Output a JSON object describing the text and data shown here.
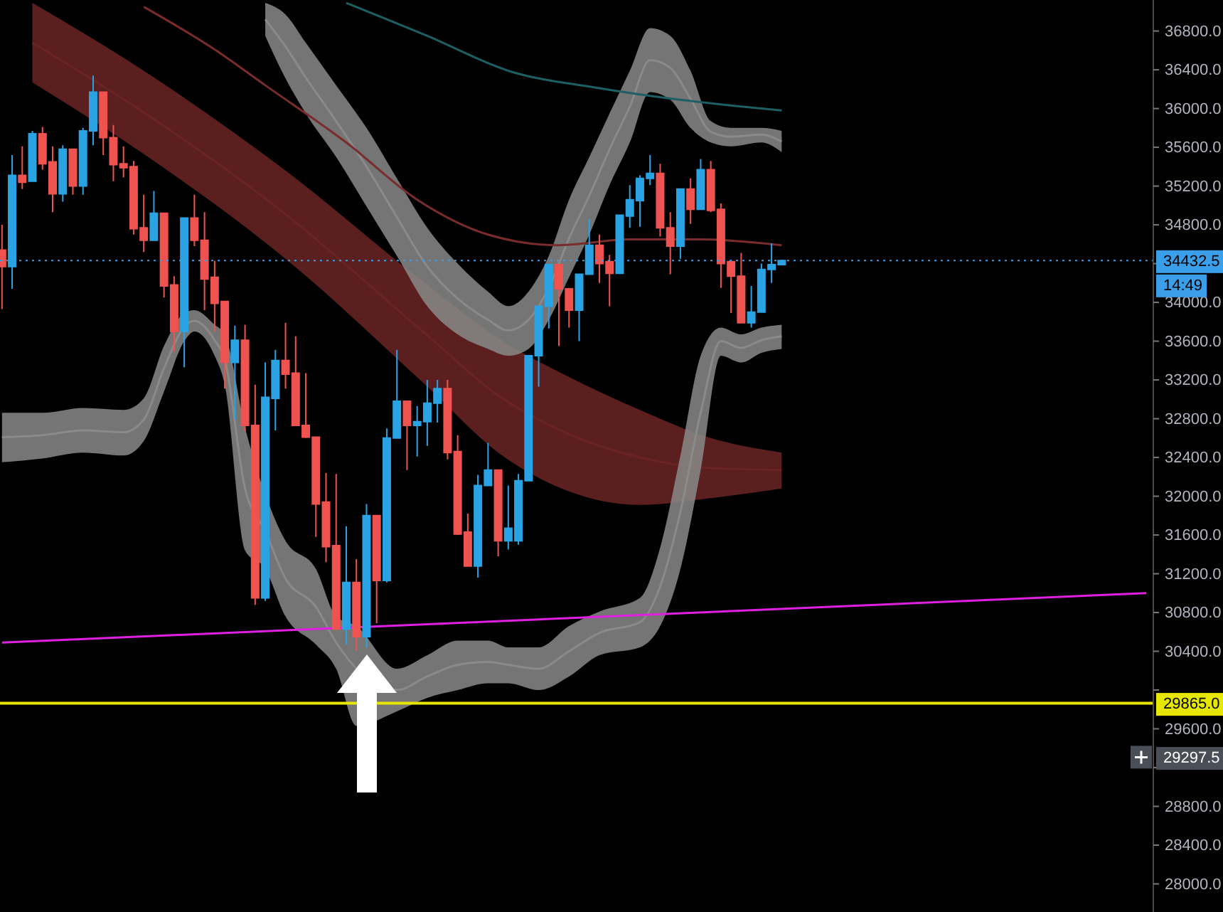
{
  "chart_data": {
    "type": "candlestick",
    "categories": [
      null,
      null,
      null,
      null,
      null,
      null,
      null,
      null,
      null,
      null,
      null,
      null,
      null,
      null,
      null,
      null,
      null,
      null,
      null,
      null,
      null,
      null,
      null,
      null,
      null,
      null,
      null,
      null,
      null,
      null,
      null,
      null,
      null,
      null,
      null,
      null,
      null,
      null,
      null,
      null,
      null,
      null,
      null,
      null,
      null,
      null,
      null,
      null,
      null,
      null,
      null,
      null,
      null,
      null,
      null,
      null,
      null,
      null,
      null,
      null,
      null,
      null,
      null,
      null,
      null,
      null,
      null,
      null,
      null,
      null,
      null,
      null,
      null,
      null,
      null,
      null,
      null,
      null,
      null,
      null,
      null,
      null,
      null,
      null,
      null,
      null,
      null,
      null,
      null,
      null,
      null,
      null,
      null,
      null,
      null,
      null,
      null,
      null,
      null,
      null,
      null,
      null,
      null,
      null,
      null,
      null,
      null,
      null,
      null,
      null,
      null,
      null,
      null,
      null
    ],
    "ohlc": [
      [
        34540,
        34800,
        33930,
        34370
      ],
      [
        34370,
        35520,
        34140,
        35310
      ],
      [
        35310,
        35610,
        35170,
        35240
      ],
      [
        35250,
        35770,
        35250,
        35740
      ],
      [
        35740,
        35810,
        35370,
        35430
      ],
      [
        35450,
        35610,
        34930,
        35120
      ],
      [
        35120,
        35620,
        35040,
        35580
      ],
      [
        35580,
        35580,
        35110,
        35200
      ],
      [
        35200,
        35800,
        35110,
        35770
      ],
      [
        35770,
        36340,
        35620,
        36170
      ],
      [
        36170,
        36170,
        35520,
        35700
      ],
      [
        35700,
        35830,
        35250,
        35420
      ],
      [
        35430,
        35610,
        35290,
        35390
      ],
      [
        35400,
        35460,
        34700,
        34760
      ],
      [
        34770,
        35110,
        34520,
        34640
      ],
      [
        34640,
        35150,
        34640,
        34920
      ],
      [
        34920,
        34920,
        34050,
        34170
      ],
      [
        34180,
        34270,
        33490,
        33700
      ],
      [
        33700,
        34870,
        33330,
        34870
      ],
      [
        34870,
        35110,
        34580,
        34640
      ],
      [
        34640,
        34930,
        33920,
        34240
      ],
      [
        34260,
        34430,
        33700,
        33990
      ],
      [
        34010,
        34010,
        33110,
        33380
      ],
      [
        33380,
        33760,
        32790,
        33610
      ],
      [
        33610,
        33770,
        32670,
        32730
      ],
      [
        32730,
        33150,
        30880,
        30950
      ],
      [
        30950,
        33380,
        30920,
        33020
      ],
      [
        33010,
        33510,
        32680,
        33400
      ],
      [
        33400,
        33790,
        33110,
        33260
      ],
      [
        33270,
        33650,
        32730,
        32730
      ],
      [
        32730,
        33270,
        32600,
        32610
      ],
      [
        32610,
        32610,
        31580,
        31920
      ],
      [
        31940,
        32240,
        31320,
        31480
      ],
      [
        31490,
        32230,
        30630,
        30630
      ],
      [
        30630,
        31690,
        30470,
        31110
      ],
      [
        31110,
        31350,
        30410,
        30550
      ],
      [
        30550,
        31920,
        30440,
        31800
      ],
      [
        31800,
        31800,
        30690,
        31130
      ],
      [
        31130,
        32700,
        31110,
        32600
      ],
      [
        32600,
        33510,
        32600,
        32980
      ],
      [
        32980,
        32980,
        32270,
        32730
      ],
      [
        32730,
        32930,
        32410,
        32770
      ],
      [
        32770,
        33200,
        32520,
        32960
      ],
      [
        32960,
        33200,
        32760,
        33110
      ],
      [
        33110,
        33200,
        32380,
        32450
      ],
      [
        32460,
        32630,
        31600,
        31610
      ],
      [
        31630,
        31820,
        31280,
        31280
      ],
      [
        31280,
        32220,
        31160,
        32110
      ],
      [
        32110,
        32550,
        32110,
        32270
      ],
      [
        32270,
        32270,
        31380,
        31540
      ],
      [
        31540,
        32110,
        31450,
        31670
      ],
      [
        31540,
        32230,
        31500,
        32160
      ],
      [
        32160,
        33450,
        32160,
        33450
      ],
      [
        33450,
        33960,
        33130,
        33960
      ],
      [
        33960,
        34400,
        33730,
        34390
      ],
      [
        34390,
        34390,
        33550,
        34140
      ],
      [
        34140,
        34150,
        33740,
        33920
      ],
      [
        33920,
        34290,
        33600,
        34290
      ],
      [
        34290,
        34860,
        34290,
        34590
      ],
      [
        34590,
        34700,
        34200,
        34400
      ],
      [
        34420,
        34490,
        33960,
        34300
      ],
      [
        34300,
        34900,
        34300,
        34900
      ],
      [
        34890,
        35210,
        34770,
        35060
      ],
      [
        35050,
        35310,
        34780,
        35280
      ],
      [
        35280,
        35520,
        35210,
        35330
      ],
      [
        35330,
        35430,
        34680,
        34770
      ],
      [
        34770,
        34930,
        34290,
        34580
      ],
      [
        34580,
        35170,
        34450,
        35170
      ],
      [
        35170,
        35280,
        34810,
        34960
      ],
      [
        34960,
        35480,
        34960,
        35370
      ],
      [
        35370,
        35460,
        34930,
        34950
      ],
      [
        34960,
        35020,
        34150,
        34400
      ],
      [
        34420,
        34420,
        33890,
        34270
      ],
      [
        34270,
        34510,
        33790,
        33790
      ],
      [
        33790,
        34170,
        33740,
        33900
      ],
      [
        33900,
        34400,
        33900,
        34340
      ],
      [
        34340,
        34610,
        34200,
        34390
      ],
      [
        34390,
        34432.5,
        34390,
        34432.5
      ],
      null,
      null,
      null,
      null,
      null,
      null,
      null,
      null,
      null,
      null,
      null,
      null,
      null,
      null,
      null,
      null,
      null,
      null,
      null,
      null,
      null,
      null,
      null,
      null,
      null,
      null,
      null,
      null,
      null,
      null,
      null,
      null,
      null,
      null,
      null,
      null
    ],
    "colors": [
      "#ef5350",
      "#2aa3e4",
      "#ef5350",
      "#2aa3e4",
      "#ef5350",
      "#ef5350",
      "#2aa3e4",
      "#ef5350",
      "#2aa3e4",
      "#2aa3e4",
      "#ef5350",
      "#ef5350",
      "#ef5350",
      "#ef5350",
      "#ef5350",
      "#2aa3e4",
      "#ef5350",
      "#ef5350",
      "#2aa3e4",
      "#ef5350",
      "#ef5350",
      "#ef5350",
      "#ef5350",
      "#2aa3e4",
      "#ef5350",
      "#ef5350",
      "#2aa3e4",
      "#2aa3e4",
      "#ef5350",
      "#ef5350",
      "#ef5350",
      "#ef5350",
      "#ef5350",
      "#ef5350",
      "#2aa3e4",
      "#ef5350",
      "#2aa3e4",
      "#ef5350",
      "#2aa3e4",
      "#2aa3e4",
      "#ef5350",
      "#2aa3e4",
      "#2aa3e4",
      "#2aa3e4",
      "#ef5350",
      "#ef5350",
      "#ef5350",
      "#2aa3e4",
      "#2aa3e4",
      "#ef5350",
      "#2aa3e4",
      "#2aa3e4",
      "#2aa3e4",
      "#2aa3e4",
      "#2aa3e4",
      "#ef5350",
      "#ef5350",
      "#2aa3e4",
      "#2aa3e4",
      "#ef5350",
      "#ef5350",
      "#2aa3e4",
      "#2aa3e4",
      "#2aa3e4",
      "#2aa3e4",
      "#ef5350",
      "#ef5350",
      "#2aa3e4",
      "#ef5350",
      "#2aa3e4",
      "#ef5350",
      "#ef5350",
      "#ef5350",
      "#ef5350",
      "#2aa3e4",
      "#2aa3e4",
      "#2aa3e4",
      "#2aa3e4",
      null,
      null,
      null,
      null,
      null,
      null,
      null,
      null,
      null,
      null,
      null,
      null,
      null,
      null,
      null,
      null,
      null,
      null,
      null,
      null,
      null,
      null,
      null,
      null,
      null,
      null,
      null,
      null,
      null,
      null,
      null,
      null,
      null,
      null,
      null,
      null
    ],
    "series": [
      {
        "type": "line",
        "color": "#6b2424",
        "values": [
          null,
          null,
          null,
          36680,
          null,
          null,
          null,
          null,
          null,
          null,
          null,
          null,
          null,
          null,
          35960,
          null,
          null,
          null,
          null,
          null,
          null,
          null,
          null,
          null,
          null,
          null,
          null,
          null,
          34910,
          null,
          null,
          null,
          null,
          null,
          null,
          null,
          null,
          null,
          null,
          null,
          null,
          null,
          33660,
          null,
          null,
          null,
          null,
          null,
          null,
          33040,
          null,
          null,
          null,
          null,
          null,
          null,
          32640,
          null,
          null,
          null,
          null,
          null,
          null,
          32400,
          null,
          null,
          null,
          null,
          null,
          null,
          32290,
          null,
          null,
          null,
          null,
          null,
          null,
          32270,
          null,
          null,
          null,
          null,
          null,
          null,
          null,
          null,
          null,
          null,
          null,
          null,
          null,
          null,
          null,
          null,
          null,
          null,
          null,
          null,
          null,
          null,
          null,
          null,
          null,
          null,
          null,
          null,
          null,
          null,
          null,
          null,
          null,
          null,
          null,
          null
        ],
        "upper": [
          null,
          null,
          null,
          37090,
          null,
          null,
          null,
          null,
          null,
          null,
          null,
          null,
          null,
          null,
          36390,
          null,
          null,
          null,
          null,
          null,
          null,
          null,
          null,
          null,
          null,
          null,
          null,
          null,
          35360,
          null,
          null,
          null,
          null,
          null,
          null,
          null,
          null,
          null,
          null,
          null,
          null,
          null,
          34180,
          null,
          null,
          null,
          null,
          null,
          null,
          33630,
          null,
          null,
          null,
          null,
          null,
          null,
          33230,
          null,
          null,
          null,
          null,
          null,
          null,
          32890,
          null,
          null,
          null,
          null,
          null,
          null,
          32600,
          null,
          null,
          null,
          null,
          null,
          null,
          32450,
          null,
          null,
          null,
          null,
          null,
          null,
          null,
          null,
          null,
          null,
          null,
          null,
          null,
          null,
          null,
          null,
          null,
          null,
          null,
          null,
          null,
          null,
          null,
          null,
          null,
          null,
          null,
          null,
          null,
          null,
          null,
          null,
          null,
          null,
          null,
          null
        ],
        "lower": [
          null,
          null,
          null,
          36270,
          null,
          null,
          null,
          null,
          null,
          null,
          null,
          null,
          null,
          null,
          35530,
          null,
          null,
          null,
          null,
          null,
          null,
          null,
          null,
          null,
          null,
          null,
          null,
          null,
          34450,
          null,
          null,
          null,
          null,
          null,
          null,
          null,
          null,
          null,
          null,
          null,
          null,
          null,
          33130,
          null,
          null,
          null,
          null,
          null,
          null,
          32450,
          null,
          null,
          null,
          null,
          null,
          null,
          32050,
          null,
          null,
          null,
          null,
          null,
          null,
          31910,
          null,
          null,
          null,
          null,
          null,
          null,
          31980,
          null,
          null,
          null,
          null,
          null,
          null,
          32080,
          null,
          null,
          null,
          null,
          null,
          null,
          null,
          null,
          null,
          null,
          null,
          null,
          null,
          null,
          null,
          null,
          null,
          null,
          null,
          null,
          null,
          null,
          null,
          null,
          null,
          null,
          null,
          null,
          null,
          null,
          null,
          null,
          null,
          null,
          null,
          null
        ]
      },
      {
        "type": "line",
        "color": "#8a8a8a",
        "values": [
          null,
          null,
          null,
          null,
          null,
          null,
          null,
          null,
          null,
          null,
          null,
          null,
          null,
          null,
          null,
          null,
          null,
          null,
          null,
          null,
          null,
          null,
          null,
          null,
          null,
          null,
          36920,
          null,
          36640,
          null,
          36320,
          null,
          null,
          35870,
          null,
          null,
          35400,
          null,
          null,
          34880,
          null,
          null,
          34370,
          null,
          null,
          34040,
          null,
          null,
          33820,
          null,
          33710,
          null,
          33820,
          null,
          34150,
          null,
          34660,
          null,
          35100,
          null,
          35580,
          null,
          36020,
          null,
          36500,
          null,
          36420,
          null,
          36100,
          null,
          35760,
          null,
          35710,
          null,
          null,
          35730,
          null,
          35660,
          null,
          null,
          null,
          null,
          null,
          null,
          null,
          null,
          null,
          null,
          null,
          null,
          null,
          null,
          null,
          null,
          null,
          null,
          null,
          null,
          null,
          null,
          null,
          null,
          null,
          null,
          null,
          null,
          null,
          null,
          null,
          null,
          null,
          null,
          null,
          null
        ],
        "upper": [
          null,
          null,
          null,
          null,
          null,
          null,
          null,
          null,
          null,
          null,
          null,
          null,
          null,
          null,
          null,
          null,
          null,
          null,
          null,
          null,
          null,
          null,
          null,
          null,
          null,
          null,
          37090,
          null,
          36970,
          null,
          36680,
          null,
          null,
          36240,
          null,
          null,
          35800,
          null,
          null,
          35280,
          null,
          null,
          34770,
          null,
          null,
          34400,
          null,
          null,
          34110,
          null,
          33960,
          null,
          34110,
          null,
          34480,
          null,
          35060,
          null,
          35500,
          null,
          35950,
          null,
          36390,
          null,
          36830,
          null,
          36750,
          null,
          36390,
          null,
          35870,
          null,
          35800,
          null,
          null,
          35800,
          null,
          35770,
          null,
          null,
          null,
          null,
          null,
          null,
          null,
          null,
          null,
          null,
          null,
          null,
          null,
          null,
          null,
          null,
          null,
          null,
          null,
          null,
          null,
          null,
          null,
          null,
          null,
          null,
          null,
          null,
          null,
          null,
          null,
          null,
          null,
          null,
          null,
          null
        ],
        "lower": [
          null,
          null,
          null,
          null,
          null,
          null,
          null,
          null,
          null,
          null,
          null,
          null,
          null,
          null,
          null,
          null,
          null,
          null,
          null,
          null,
          null,
          null,
          null,
          null,
          null,
          null,
          36750,
          null,
          36310,
          null,
          35950,
          null,
          null,
          35500,
          null,
          null,
          34990,
          null,
          null,
          34480,
          null,
          null,
          33960,
          null,
          null,
          33670,
          null,
          null,
          33520,
          null,
          33450,
          null,
          33520,
          null,
          33820,
          null,
          34260,
          null,
          34700,
          null,
          35210,
          null,
          35650,
          null,
          36170,
          null,
          36090,
          null,
          35800,
          null,
          35650,
          null,
          35610,
          null,
          null,
          35650,
          null,
          35550,
          null,
          null,
          null,
          null,
          null,
          null,
          null,
          null,
          null,
          null,
          null,
          null,
          null,
          null,
          null,
          null,
          null,
          null,
          null,
          null,
          null,
          null,
          null,
          null,
          null,
          null,
          null,
          null,
          null,
          null,
          null,
          null,
          null,
          null,
          null,
          null
        ]
      },
      {
        "type": "line",
        "color": "#8a8a8a",
        "values": [
          32610,
          null,
          null,
          null,
          32630,
          null,
          null,
          null,
          32680,
          null,
          null,
          null,
          32660,
          null,
          32790,
          null,
          33320,
          null,
          33750,
          33810,
          null,
          33610,
          33410,
          null,
          32080,
          null,
          31640,
          null,
          31150,
          null,
          null,
          30860,
          null,
          30490,
          null,
          null,
          null,
          null,
          null,
          30000,
          null,
          null,
          30140,
          null,
          null,
          30260,
          null,
          null,
          30290,
          null,
          30260,
          null,
          null,
          30220,
          null,
          null,
          30400,
          null,
          null,
          30590,
          null,
          null,
          null,
          30700,
          null,
          31070,
          null,
          31840,
          null,
          32860,
          null,
          33600,
          null,
          33530,
          null,
          33610,
          null,
          33650,
          null,
          null,
          null,
          null,
          null,
          null,
          null,
          null,
          null,
          null,
          null,
          null,
          null,
          null,
          null,
          null,
          null,
          null,
          null,
          null,
          null,
          null,
          null,
          null,
          null,
          null,
          null,
          null,
          null,
          null,
          null,
          null,
          null,
          null,
          null,
          null
        ],
        "upper": [
          32860,
          null,
          null,
          null,
          32860,
          null,
          null,
          null,
          32910,
          null,
          null,
          null,
          32890,
          null,
          33010,
          null,
          33550,
          null,
          33890,
          33920,
          null,
          33770,
          33670,
          null,
          32710,
          null,
          32020,
          null,
          31540,
          null,
          null,
          31250,
          null,
          30760,
          null,
          30660,
          null,
          null,
          null,
          30220,
          null,
          null,
          30360,
          null,
          null,
          30510,
          null,
          null,
          30510,
          null,
          30440,
          null,
          null,
          30440,
          null,
          null,
          30660,
          null,
          null,
          30810,
          null,
          null,
          null,
          30950,
          null,
          31470,
          null,
          32420,
          null,
          33450,
          null,
          33740,
          null,
          33670,
          null,
          33740,
          null,
          33770,
          null,
          null,
          null,
          null,
          null,
          null,
          null,
          null,
          null,
          null,
          null,
          null,
          null,
          null,
          null,
          null,
          null,
          null,
          null,
          null,
          null,
          null,
          null,
          null,
          null,
          null,
          null,
          null,
          null,
          null,
          null,
          null,
          null,
          null,
          null,
          null
        ],
        "lower": [
          32350,
          null,
          null,
          null,
          32390,
          null,
          null,
          null,
          32450,
          null,
          null,
          null,
          32420,
          null,
          32570,
          null,
          33080,
          null,
          33600,
          33700,
          null,
          33450,
          33150,
          null,
          31440,
          null,
          31250,
          null,
          30760,
          null,
          null,
          30470,
          null,
          30220,
          null,
          29630,
          null,
          null,
          null,
          29780,
          null,
          null,
          29920,
          null,
          null,
          30000,
          null,
          null,
          30070,
          null,
          30070,
          null,
          null,
          30000,
          null,
          null,
          30140,
          null,
          null,
          30360,
          null,
          null,
          null,
          30440,
          null,
          30660,
          null,
          31250,
          null,
          32270,
          null,
          33450,
          null,
          33380,
          null,
          33480,
          null,
          33520,
          null,
          null,
          null,
          null,
          null,
          null,
          null,
          null,
          null,
          null,
          null,
          null,
          null,
          null,
          null,
          null,
          null,
          null,
          null,
          null,
          null,
          null,
          null,
          null,
          null,
          null,
          null,
          null,
          null,
          null,
          null,
          null,
          null,
          null,
          null,
          null
        ]
      },
      {
        "type": "line",
        "color": "#7a2c2c",
        "values": [
          null,
          null,
          null,
          null,
          null,
          null,
          null,
          null,
          null,
          null,
          null,
          null,
          null,
          null,
          37050,
          null,
          null,
          null,
          null,
          null,
          null,
          36610,
          null,
          null,
          null,
          null,
          36240,
          null,
          null,
          null,
          null,
          null,
          null,
          null,
          35650,
          null,
          null,
          null,
          null,
          null,
          null,
          35060,
          null,
          null,
          null,
          null,
          null,
          null,
          34700,
          null,
          null,
          null,
          null,
          null,
          null,
          34590,
          null,
          null,
          null,
          null,
          null,
          null,
          34650,
          null,
          null,
          null,
          null,
          null,
          null,
          34650,
          null,
          null,
          null,
          null,
          null,
          null,
          null,
          34590,
          null,
          null,
          null,
          null,
          null,
          null,
          null,
          null,
          null,
          null,
          null,
          null,
          null,
          null,
          null,
          null,
          null,
          null,
          null,
          null,
          null,
          null,
          null,
          null,
          null,
          null,
          null,
          null,
          null,
          null,
          null,
          null,
          null,
          null,
          null,
          null
        ]
      },
      {
        "type": "line",
        "color": "#1d5f62",
        "values": [
          null,
          null,
          null,
          null,
          null,
          null,
          null,
          null,
          null,
          null,
          null,
          null,
          null,
          null,
          null,
          null,
          null,
          null,
          null,
          null,
          null,
          null,
          null,
          null,
          null,
          null,
          null,
          null,
          null,
          null,
          null,
          null,
          null,
          null,
          37090,
          null,
          null,
          null,
          null,
          null,
          null,
          null,
          36750,
          null,
          null,
          null,
          null,
          null,
          null,
          null,
          36390,
          null,
          null,
          null,
          null,
          null,
          null,
          null,
          null,
          36210,
          null,
          null,
          null,
          null,
          null,
          null,
          null,
          36090,
          null,
          null,
          null,
          null,
          null,
          null,
          null,
          null,
          null,
          35980,
          null,
          null,
          null,
          null,
          null,
          null,
          null,
          null,
          null,
          null,
          null,
          null,
          null,
          null,
          null,
          null,
          null,
          null,
          null,
          null,
          null,
          null,
          null,
          null,
          null,
          null,
          null,
          null,
          null,
          null,
          null,
          null,
          null,
          null,
          null,
          null
        ]
      },
      {
        "type": "line",
        "color": "#e020e0",
        "values": [
          30490,
          null,
          null,
          null,
          null,
          null,
          null,
          null,
          null,
          null,
          null,
          null,
          null,
          null,
          null,
          null,
          null,
          null,
          null,
          null,
          null,
          null,
          null,
          null,
          null,
          null,
          null,
          null,
          null,
          null,
          null,
          null,
          null,
          null,
          null,
          null,
          null,
          null,
          null,
          null,
          null,
          null,
          null,
          null,
          null,
          null,
          null,
          null,
          null,
          null,
          null,
          null,
          null,
          null,
          null,
          null,
          null,
          null,
          null,
          null,
          null,
          null,
          null,
          null,
          null,
          null,
          null,
          null,
          null,
          null,
          null,
          null,
          null,
          null,
          null,
          null,
          null,
          null,
          null,
          null,
          null,
          null,
          null,
          null,
          null,
          null,
          null,
          null,
          null,
          null,
          null,
          null,
          null,
          null,
          null,
          null,
          null,
          null,
          null,
          null,
          null,
          null,
          null,
          null,
          null,
          null,
          null,
          null,
          null,
          null,
          null,
          null,
          null,
          31000
        ]
      }
    ],
    "ylim": [
      27710,
      37120
    ],
    "yticks": [
      {
        "value": 28000,
        "label": "28000.0"
      },
      {
        "value": 28400,
        "label": "28400.0"
      },
      {
        "value": 28800,
        "label": "28800.0"
      },
      {
        "value": 29200,
        "label": null
      },
      {
        "value": 29600,
        "label": "29600.0"
      },
      {
        "value": 30000,
        "label": null
      },
      {
        "value": 30400,
        "label": "30400.0"
      },
      {
        "value": 30800,
        "label": "30800.0"
      },
      {
        "value": 31200,
        "label": "31200.0"
      },
      {
        "value": 31600,
        "label": "31600.0"
      },
      {
        "value": 32000,
        "label": "32000.0"
      },
      {
        "value": 32400,
        "label": "32400.0"
      },
      {
        "value": 32800,
        "label": "32800.0"
      },
      {
        "value": 33200,
        "label": "33200.0"
      },
      {
        "value": 33600,
        "label": "33600.0"
      },
      {
        "value": 34000,
        "label": "34000.0"
      },
      {
        "value": 34400,
        "label": null
      },
      {
        "value": 34800,
        "label": "34800.0"
      },
      {
        "value": 35200,
        "label": "35200.0"
      },
      {
        "value": 35600,
        "label": "35600.0"
      },
      {
        "value": 36000,
        "label": "36000.0"
      },
      {
        "value": 36400,
        "label": "36400.0"
      },
      {
        "value": 36800,
        "label": "36800.0"
      }
    ],
    "tick_labels": "y",
    "ref_lines": [
      {
        "axis": "y",
        "value": 34432.5,
        "label": "34432.5",
        "color": "#3a9fe8",
        "line_style": "dotted"
      },
      {
        "axis": "y",
        "value": 29865,
        "label": "29865.0",
        "color": "#e6e600",
        "line_style": "solid"
      }
    ],
    "annotations": [
      "14:49",
      "29297.5"
    ]
  }
}
